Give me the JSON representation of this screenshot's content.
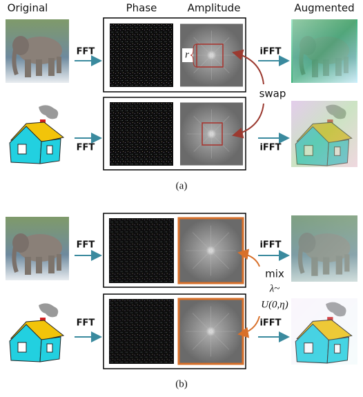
{
  "headers": {
    "original": "Original",
    "phase": "Phase",
    "amplitude": "Amplitude",
    "augmented": "Augmented"
  },
  "panel_a": {
    "rows": [
      {
        "forward": "FFT",
        "inverse": "iFFT"
      },
      {
        "forward": "FFT",
        "inverse": "iFFT"
      }
    ],
    "radius": "r",
    "operation": "swap",
    "caption": "(a)"
  },
  "panel_b": {
    "rows": [
      {
        "forward": "FFT",
        "inverse": "iFFT"
      },
      {
        "forward": "FFT",
        "inverse": "iFFT"
      }
    ],
    "operation": [
      "mix",
      "λ~",
      "U(0,η)"
    ],
    "caption": "(b)"
  }
}
